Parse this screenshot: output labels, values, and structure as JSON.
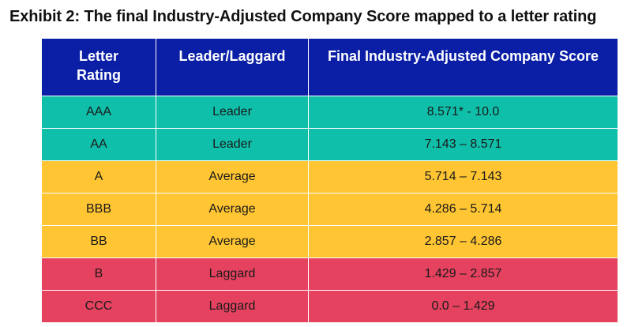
{
  "title": "Exhibit 2: The final Industry-Adjusted Company Score mapped to a letter rating",
  "table": {
    "headers": [
      {
        "label": "Letter Rating"
      },
      {
        "label": "Leader/Laggard"
      },
      {
        "label": "Final Industry-Adjusted Company Score"
      }
    ],
    "rows": [
      {
        "rating": "AAA",
        "category": "Leader",
        "score": "8.571* - 10.0",
        "color": "#0fbfaa"
      },
      {
        "rating": "AA",
        "category": "Leader",
        "score": "7.143 – 8.571",
        "color": "#0fbfaa"
      },
      {
        "rating": "A",
        "category": "Average",
        "score": "5.714 – 7.143",
        "color": "#ffc533"
      },
      {
        "rating": "BBB",
        "category": "Average",
        "score": "4.286 – 5.714",
        "color": "#ffc533"
      },
      {
        "rating": "BB",
        "category": "Average",
        "score": "2.857 – 4.286",
        "color": "#ffc533"
      },
      {
        "rating": "B",
        "category": "Laggard",
        "score": "1.429 – 2.857",
        "color": "#e5425f"
      },
      {
        "rating": "CCC",
        "category": "Laggard",
        "score": "0.0 – 1.429",
        "color": "#e5425f"
      }
    ]
  }
}
